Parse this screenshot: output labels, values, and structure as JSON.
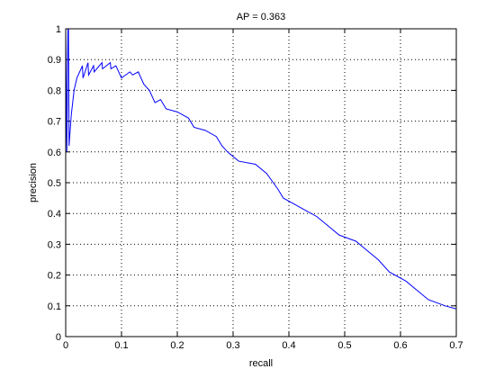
{
  "chart_data": {
    "type": "line",
    "title": "AP = 0.363",
    "x_label": "recall",
    "y_label": "precision",
    "x": [
      0.0,
      0.002,
      0.004,
      0.005,
      0.006,
      0.01,
      0.015,
      0.02,
      0.025,
      0.03,
      0.031,
      0.04,
      0.041,
      0.05,
      0.051,
      0.065,
      0.066,
      0.08,
      0.081,
      0.09,
      0.1,
      0.115,
      0.12,
      0.13,
      0.14,
      0.15,
      0.16,
      0.17,
      0.18,
      0.2,
      0.22,
      0.23,
      0.25,
      0.27,
      0.28,
      0.29,
      0.31,
      0.34,
      0.36,
      0.38,
      0.39,
      0.41,
      0.43,
      0.45,
      0.47,
      0.49,
      0.52,
      0.54,
      0.56,
      0.58,
      0.61,
      0.63,
      0.65,
      0.68,
      0.7
    ],
    "series": [
      {
        "name": "precision",
        "color": "#0000ff",
        "values": [
          1.0,
          0.6,
          1.0,
          1.0,
          0.62,
          0.72,
          0.8,
          0.84,
          0.86,
          0.88,
          0.84,
          0.89,
          0.85,
          0.88,
          0.86,
          0.89,
          0.87,
          0.89,
          0.87,
          0.88,
          0.84,
          0.86,
          0.85,
          0.86,
          0.82,
          0.8,
          0.76,
          0.77,
          0.74,
          0.73,
          0.71,
          0.68,
          0.67,
          0.65,
          0.62,
          0.6,
          0.57,
          0.56,
          0.53,
          0.48,
          0.45,
          0.43,
          0.41,
          0.39,
          0.36,
          0.33,
          0.31,
          0.28,
          0.25,
          0.21,
          0.18,
          0.15,
          0.12,
          0.1,
          0.09
        ]
      }
    ],
    "xlim": [
      0,
      0.7
    ],
    "xticks": [
      0,
      0.1,
      0.2,
      0.3,
      0.4,
      0.5,
      0.6,
      0.7
    ],
    "ylim": [
      0,
      1
    ],
    "yticks": [
      0,
      0.1,
      0.2,
      0.3,
      0.4,
      0.5,
      0.6,
      0.7,
      0.8,
      0.9,
      1
    ],
    "grid": true
  }
}
